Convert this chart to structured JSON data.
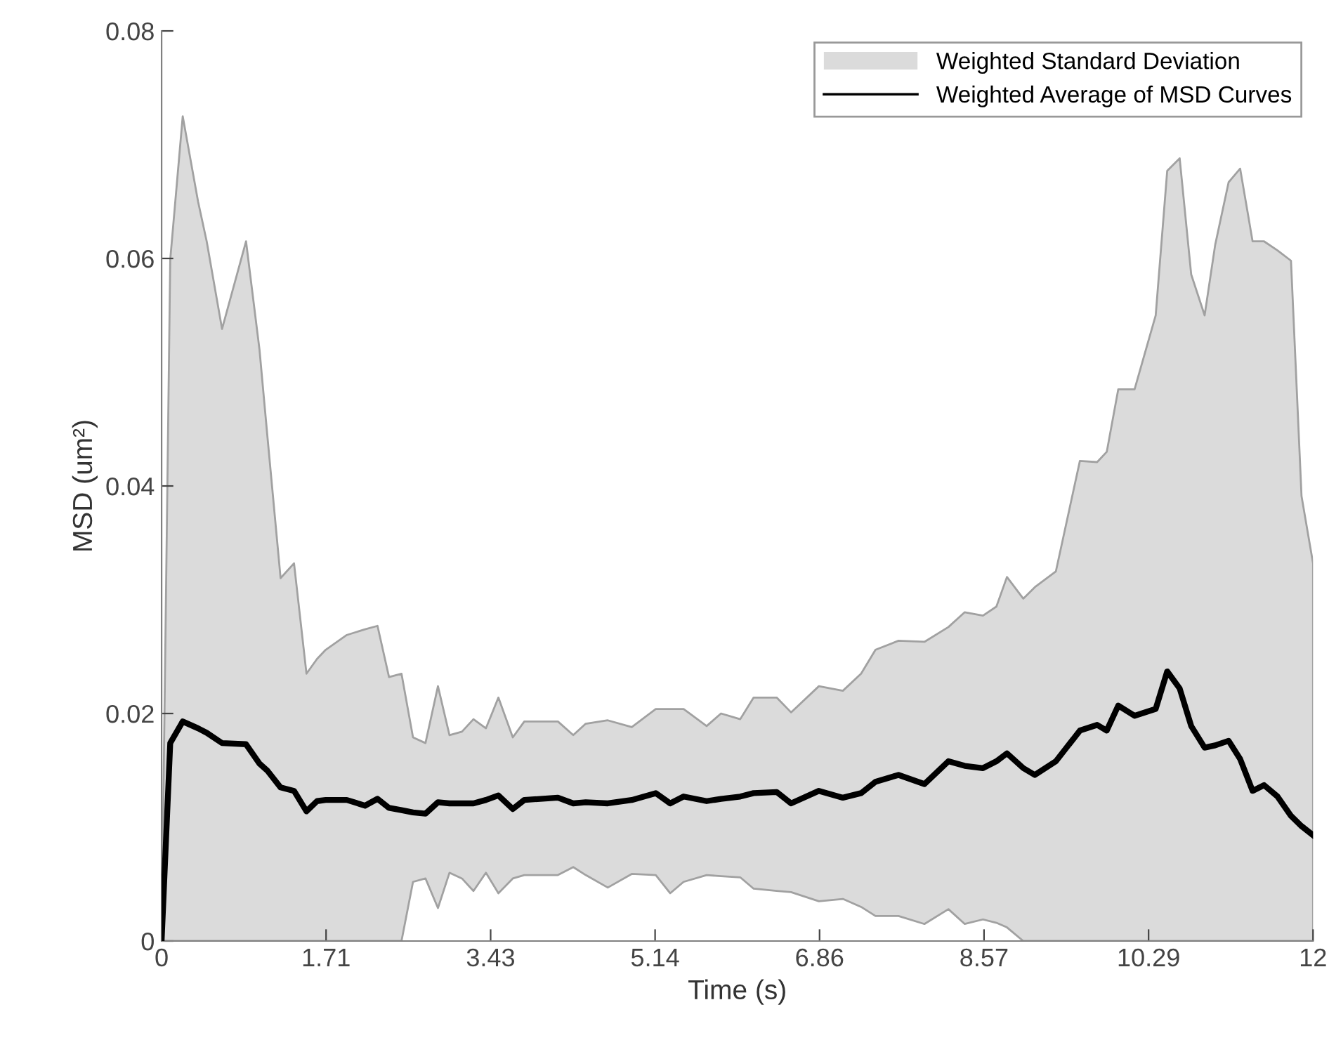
{
  "chart_data": {
    "type": "line",
    "xlabel": "Time (s)",
    "ylabel": "MSD (um²)",
    "annotations": [
      "Weighted Standard Deviation"
    ],
    "x": [
      0,
      0.09,
      0.22,
      0.38,
      0.47,
      0.63,
      0.88,
      1.02,
      1.1,
      1.24,
      1.38,
      1.51,
      1.62,
      1.71,
      1.93,
      2.12,
      2.25,
      2.37,
      2.5,
      2.62,
      2.75,
      2.88,
      3.0,
      3.13,
      3.25,
      3.38,
      3.51,
      3.66,
      3.78,
      4.13,
      4.29,
      4.42,
      4.65,
      4.9,
      5.15,
      5.3,
      5.44,
      5.68,
      5.83,
      6.03,
      6.17,
      6.41,
      6.56,
      6.85,
      7.1,
      7.29,
      7.44,
      7.68,
      7.95,
      8.2,
      8.37,
      8.56,
      8.7,
      8.81,
      8.98,
      9.1,
      9.32,
      9.57,
      9.75,
      9.85,
      9.97,
      10.14,
      10.36,
      10.48,
      10.61,
      10.73,
      10.87,
      10.98,
      11.12,
      11.24,
      11.37,
      11.49,
      11.63,
      11.77,
      11.88,
      12.0
    ],
    "series": [
      {
        "name": "Weighted Average of MSD Curves",
        "color": "#000000",
        "values": [
          0,
          0.0174,
          0.0193,
          0.0187,
          0.0183,
          0.0174,
          0.0173,
          0.0156,
          0.015,
          0.0135,
          0.0132,
          0.0114,
          0.0123,
          0.0124,
          0.0124,
          0.0119,
          0.0125,
          0.0117,
          0.0115,
          0.0113,
          0.0112,
          0.0122,
          0.0121,
          0.0121,
          0.0121,
          0.0124,
          0.0128,
          0.0116,
          0.0124,
          0.0126,
          0.0121,
          0.0122,
          0.0121,
          0.0124,
          0.013,
          0.0121,
          0.0127,
          0.0123,
          0.0125,
          0.0127,
          0.013,
          0.0131,
          0.0121,
          0.0132,
          0.0126,
          0.013,
          0.014,
          0.0146,
          0.0138,
          0.0158,
          0.0154,
          0.0152,
          0.0158,
          0.0165,
          0.0152,
          0.0146,
          0.0158,
          0.0185,
          0.019,
          0.0185,
          0.0207,
          0.0198,
          0.0204,
          0.0237,
          0.0222,
          0.0189,
          0.017,
          0.0172,
          0.0176,
          0.016,
          0.0132,
          0.0137,
          0.0127,
          0.011,
          0.0101,
          0.0093
        ],
        "lower": [
          0,
          0,
          0,
          0,
          0,
          0,
          0,
          0,
          0,
          0,
          0,
          0,
          0,
          0,
          0,
          0,
          0,
          0,
          0,
          0.0052,
          0.0055,
          0.0029,
          0.006,
          0.0055,
          0.0044,
          0.006,
          0.0042,
          0.0055,
          0.0058,
          0.0058,
          0.0065,
          0.0058,
          0.0047,
          0.0059,
          0.0058,
          0.0042,
          0.0052,
          0.0058,
          0.0057,
          0.0056,
          0.0046,
          0.0044,
          0.0043,
          0.0035,
          0.0037,
          0.003,
          0.0022,
          0.0022,
          0.0015,
          0.0028,
          0.0015,
          0.0019,
          0.0016,
          0.0012,
          0,
          0,
          0,
          0,
          0,
          0,
          0,
          0,
          0,
          0,
          0,
          0,
          0,
          0,
          0,
          0,
          0,
          0,
          0,
          0,
          0,
          0
        ],
        "upper": [
          0,
          0.0599,
          0.0725,
          0.065,
          0.0615,
          0.0538,
          0.0615,
          0.052,
          0.0446,
          0.0319,
          0.0332,
          0.0235,
          0.0248,
          0.0256,
          0.0269,
          0.0274,
          0.0277,
          0.0232,
          0.0235,
          0.0179,
          0.0174,
          0.0224,
          0.0181,
          0.0184,
          0.0195,
          0.0187,
          0.0214,
          0.0179,
          0.0193,
          0.0193,
          0.0181,
          0.0191,
          0.0194,
          0.0188,
          0.0204,
          0.0204,
          0.0204,
          0.0189,
          0.02,
          0.0195,
          0.0214,
          0.0214,
          0.0201,
          0.0224,
          0.022,
          0.0235,
          0.0256,
          0.0264,
          0.0263,
          0.0276,
          0.0289,
          0.0286,
          0.0294,
          0.032,
          0.0301,
          0.0311,
          0.0325,
          0.0422,
          0.0421,
          0.043,
          0.0485,
          0.0485,
          0.055,
          0.0677,
          0.0688,
          0.0586,
          0.055,
          0.0612,
          0.0667,
          0.0679,
          0.0615,
          0.0615,
          0.0607,
          0.0598,
          0.0391,
          0.0332
        ]
      }
    ],
    "xlim": [
      0,
      12
    ],
    "ylim": [
      0,
      0.08
    ],
    "xticks": [
      0,
      {
        "value": 1.714,
        "label": "1.71"
      },
      {
        "value": 3.429,
        "label": "3.43"
      },
      {
        "value": 5.143,
        "label": "5.14"
      },
      {
        "value": 6.857,
        "label": "6.86"
      },
      {
        "value": 8.571,
        "label": "8.57"
      },
      {
        "value": 10.286,
        "label": "10.29"
      },
      12
    ],
    "yticks": [
      0,
      0.02,
      0.04,
      0.06,
      0.08
    ],
    "grid": false,
    "legend": "top right",
    "line_style": "solid",
    "marker": "none"
  }
}
